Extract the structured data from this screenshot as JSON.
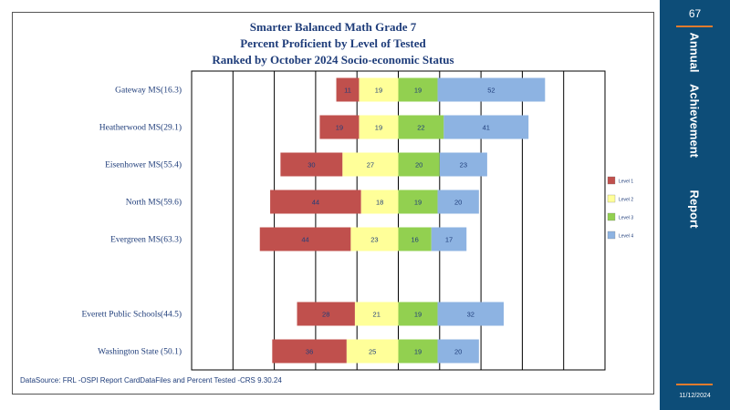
{
  "chart_data": {
    "type": "bar",
    "orientation": "horizontal",
    "stacked": true,
    "title": "Smarter Balanced Math Grade 7",
    "subtitle": "Percent Proficient by Level of Tested",
    "subtitle2": "Ranked by October 2024 Socio-economic  Status",
    "categories": [
      "Gateway  MS(16.3)",
      "Heatherwood  MS(29.1)",
      "Eisenhower MS(55.4)",
      "North MS(59.6)",
      "Evergreen  MS(63.3)",
      "",
      "Everett  Public Schools(44.5)",
      "Washington State  (50.1)"
    ],
    "series": [
      {
        "name": "Level 1",
        "color": "#c0504d",
        "values": [
          11,
          19,
          30,
          44,
          44,
          null,
          28,
          36
        ]
      },
      {
        "name": "Level 2",
        "color": "#ffff99",
        "values": [
          19,
          19,
          27,
          18,
          23,
          null,
          21,
          25
        ]
      },
      {
        "name": "Level 3",
        "color": "#92d050",
        "values": [
          19,
          22,
          20,
          19,
          16,
          null,
          19,
          19
        ]
      },
      {
        "name": "Level 4",
        "color": "#8db3e2",
        "values": [
          52,
          41,
          23,
          20,
          17,
          null,
          32,
          20
        ]
      }
    ],
    "xlim": [
      -100,
      100
    ],
    "grid": true,
    "legend_position": "right"
  },
  "source_note": "DataSource:  FRL  -OSPI   Report CardDataFiles  and  Percent  Tested      -CRS  9.30.24",
  "side_panel": {
    "page_number": "67",
    "words": [
      "Annual",
      "Achievement",
      "Report"
    ],
    "date": "11/12/2024",
    "color": "#0d4d78",
    "accent_color": "#e07b2e"
  }
}
